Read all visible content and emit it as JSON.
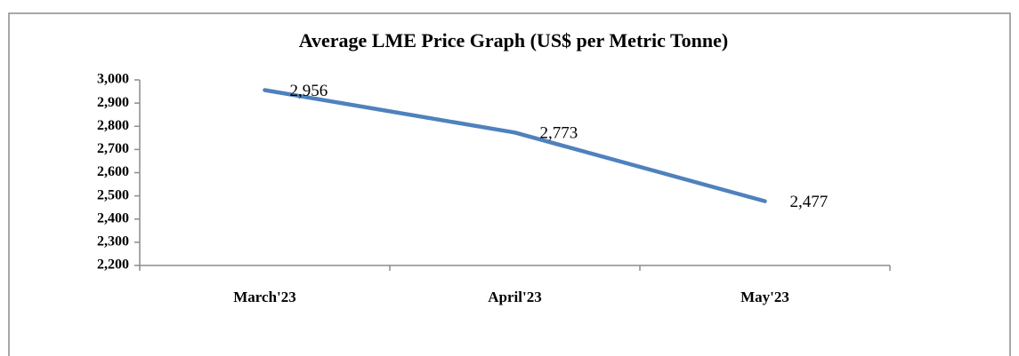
{
  "chart_data": {
    "type": "line",
    "title": "Average LME Price Graph (US$ per Metric Tonne)",
    "categories": [
      "March'23",
      "April'23",
      "May'23"
    ],
    "series": [
      {
        "name": "Average LME Price",
        "color": "#4f81bd",
        "values": [
          2956,
          2773,
          2477
        ],
        "value_labels": [
          "2,956",
          "2,773",
          "2,477"
        ]
      }
    ],
    "ylim": [
      2200,
      3000
    ],
    "yticks": [
      {
        "value": 2200,
        "label": "2,200"
      },
      {
        "value": 2300,
        "label": "2,300"
      },
      {
        "value": 2400,
        "label": "2,400"
      },
      {
        "value": 2500,
        "label": "2,500"
      },
      {
        "value": 2600,
        "label": "2,600"
      },
      {
        "value": 2700,
        "label": "2,700"
      },
      {
        "value": 2800,
        "label": "2,800"
      },
      {
        "value": 2900,
        "label": "2,900"
      },
      {
        "value": 3000,
        "label": "3,000"
      }
    ],
    "grid": false
  }
}
